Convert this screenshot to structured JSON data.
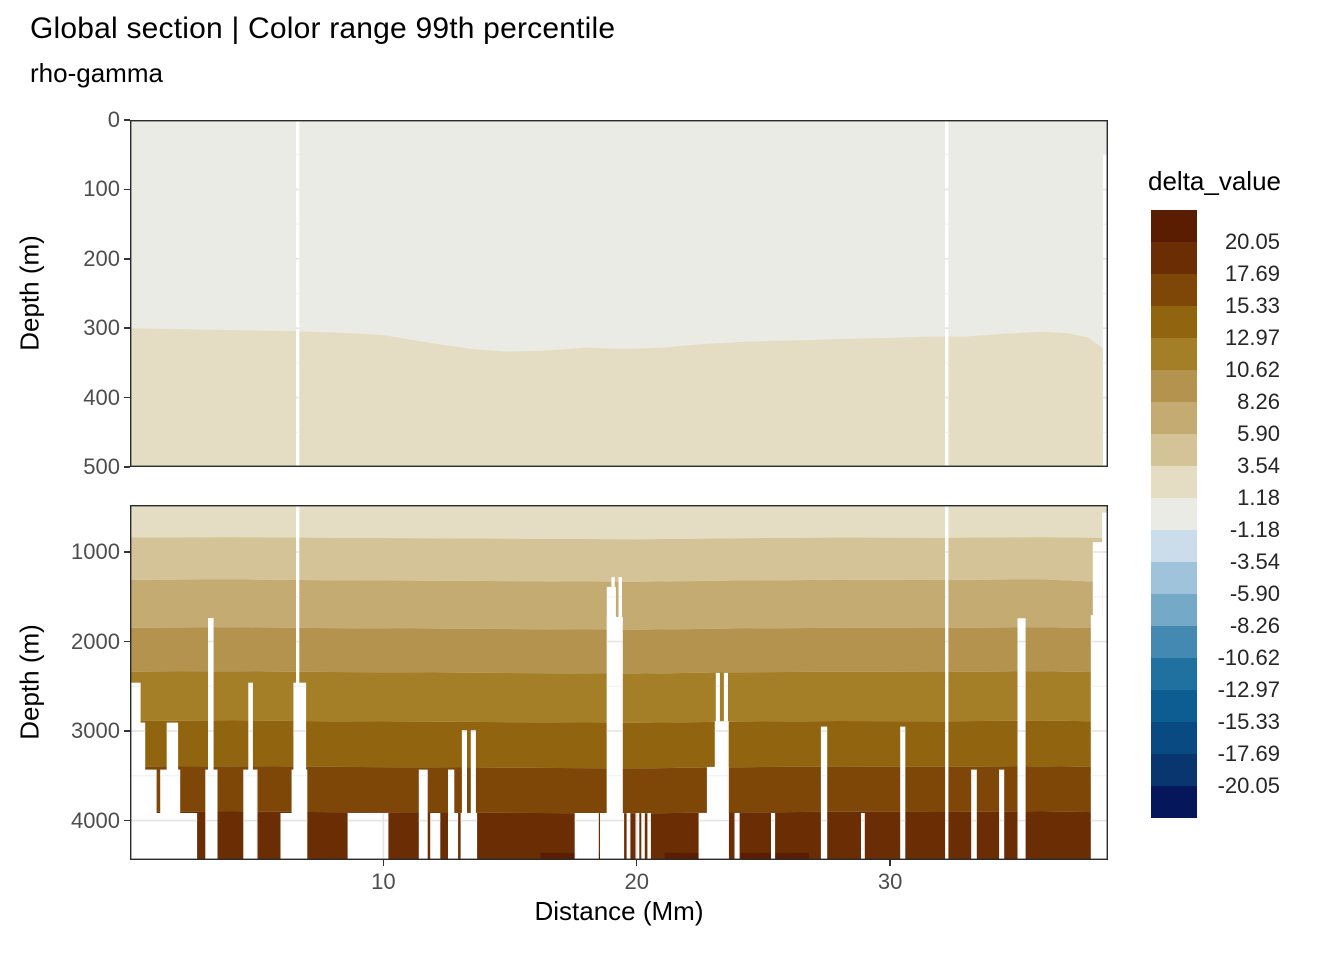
{
  "title": "Global section | Color range 99th percentile",
  "subtitle": "rho-gamma",
  "axes": {
    "x_label": "Distance (Mm)",
    "y_label": "Depth (m)",
    "x_ticks": [
      10,
      20,
      30
    ],
    "upper_y_ticks": [
      0,
      100,
      200,
      300,
      400,
      500
    ],
    "lower_y_ticks": [
      1000,
      2000,
      3000,
      4000
    ]
  },
  "legend": {
    "title": "delta_value",
    "bin_colors": [
      "#5A1D02",
      "#6B2D03",
      "#7E4708",
      "#91650F",
      "#A57F28",
      "#B3934D",
      "#C3AB72",
      "#D4C397",
      "#E5DDC3",
      "#E9EBE4",
      "#CBDDEA",
      "#9FC3DB",
      "#74A9C8",
      "#4489B1",
      "#20719F",
      "#0D5C92",
      "#0A4A82",
      "#09366E",
      "#05165A"
    ],
    "boundary_labels": [
      "20.05",
      "17.69",
      "15.33",
      "12.97",
      "10.62",
      "8.26",
      "5.90",
      "3.54",
      "1.18",
      "-1.18",
      "-3.54",
      "-5.90",
      "-8.26",
      "-10.62",
      "-12.97",
      "-15.33",
      "-17.69",
      "-20.05"
    ]
  },
  "chart_data": {
    "type": "heatmap",
    "title": "Global section | Color range 99th percentile",
    "subtitle": "rho-gamma",
    "xlabel": "Distance (Mm)",
    "ylabel": "Depth (m)",
    "legend_title": "delta_value",
    "x_range_mm": [
      0,
      38.6
    ],
    "grid": "on",
    "legend_position": "right",
    "panels": [
      {
        "name": "upper",
        "depth_range_m": [
          0,
          500
        ],
        "regions": [
          {
            "color": "#E9EBE4",
            "approx_value_bin": "-1.18 to 1.18"
          },
          {
            "color": "#E5DDC3",
            "approx_value_bin": "1.18 to 3.54"
          }
        ],
        "boundary_wave": {
          "x_mm": [
            0,
            3,
            6,
            8,
            10,
            12,
            13.5,
            15,
            16.5,
            18,
            19.5,
            21,
            22.5,
            24,
            25.5,
            27,
            28.5,
            30,
            31.5,
            33,
            34.5,
            36,
            37,
            37.8,
            38.3,
            38.6
          ],
          "depth_m": [
            300,
            302,
            304,
            306,
            310,
            322,
            330,
            334,
            332,
            328,
            330,
            328,
            323,
            320,
            318,
            317,
            315,
            314,
            312,
            312,
            308,
            305,
            307,
            313,
            326,
            336
          ]
        },
        "gaps": [
          [
            6.55,
            6.68,
            0
          ],
          [
            32.17,
            32.3,
            0
          ],
          [
            38.4,
            38.6,
            50
          ]
        ]
      },
      {
        "name": "lower",
        "depth_range_m": [
          475,
          4440
        ],
        "band_colors": [
          "#E5DDC3",
          "#D4C397",
          "#C3AB72",
          "#B3934D",
          "#A57F28",
          "#91650F",
          "#7E4708",
          "#6B2D03"
        ],
        "band_value_bins": [
          "1.18–3.54",
          "3.54–5.90",
          "5.90–8.26",
          "8.26–10.62",
          "10.62–12.97",
          "12.97–15.33",
          "15.33–17.69",
          "17.69–20.05"
        ],
        "wave_x_mm": [
          0,
          4,
          8,
          12,
          16,
          20,
          24,
          28,
          32,
          36,
          38.6
        ],
        "boundary_waves": [
          [
            838,
            834,
            840,
            846,
            852,
            858,
            846,
            838,
            841,
            834,
            842
          ],
          [
            1312,
            1306,
            1315,
            1320,
            1326,
            1332,
            1318,
            1310,
            1313,
            1306,
            1336
          ],
          [
            1848,
            1842,
            1850,
            1856,
            1862,
            1868,
            1854,
            1846,
            1849,
            1842,
            1852
          ],
          [
            2338,
            2332,
            2340,
            2346,
            2352,
            2358,
            2344,
            2337,
            2340,
            2333,
            2342
          ],
          [
            2888,
            2882,
            2890,
            2896,
            2902,
            2908,
            2894,
            2887,
            2890,
            2883,
            2892
          ],
          [
            3398,
            3393,
            3400,
            3406,
            3411,
            3417,
            3404,
            3397,
            3400,
            3394,
            3402
          ],
          [
            3903,
            3898,
            3905,
            3910,
            3915,
            3920,
            3908,
            3901,
            3904,
            3898,
            3906
          ]
        ],
        "deep_patches": [
          [
            16.2,
            18.55,
            4360
          ],
          [
            21.1,
            22.44,
            4360
          ],
          [
            24.1,
            26.8,
            4360
          ]
        ],
        "deep_patch_color": "#5A1D02",
        "gaps": [
          [
            0,
            0.42,
            2460
          ],
          [
            0,
            0.6,
            2905
          ],
          [
            1.45,
            1.9,
            2905
          ],
          [
            0,
            1.05,
            3430
          ],
          [
            1.19,
            1.98,
            3430
          ],
          [
            0,
            2.65,
            3915
          ],
          [
            3.08,
            3.3,
            1737
          ],
          [
            2.97,
            3.45,
            3430
          ],
          [
            4.67,
            4.85,
            2460
          ],
          [
            4.47,
            5.03,
            3430
          ],
          [
            6.55,
            6.68,
            475
          ],
          [
            6.45,
            6.95,
            2460
          ],
          [
            6.38,
            7.0,
            3430
          ],
          [
            5.94,
            6.5,
            3915
          ],
          [
            8.59,
            10.2,
            3915
          ],
          [
            11.4,
            11.75,
            3430
          ],
          [
            11.85,
            12.25,
            3915
          ],
          [
            12.55,
            12.8,
            3430
          ],
          [
            12.55,
            12.95,
            3915
          ],
          [
            13.1,
            13.3,
            2990
          ],
          [
            13.45,
            13.65,
            2990
          ],
          [
            13.05,
            13.7,
            3915
          ],
          [
            17.55,
            18.5,
            3915
          ],
          [
            19.0,
            19.13,
            1280,
            1390
          ],
          [
            18.82,
            19.18,
            1390
          ],
          [
            19.28,
            19.42,
            1280,
            1725
          ],
          [
            18.82,
            19.45,
            1725
          ],
          [
            18.55,
            19.5,
            3915
          ],
          [
            19.6,
            19.75,
            3915
          ],
          [
            19.95,
            20.1,
            3915
          ],
          [
            20.18,
            20.32,
            3915
          ],
          [
            20.42,
            20.56,
            3915
          ],
          [
            23.12,
            23.28,
            2350,
            2890
          ],
          [
            23.44,
            23.6,
            2350,
            2890
          ],
          [
            23.08,
            23.63,
            2890
          ],
          [
            22.77,
            23.63,
            3400
          ],
          [
            22.44,
            23.63,
            3915
          ],
          [
            23.86,
            24.06,
            3915
          ],
          [
            25.3,
            25.46,
            3915
          ],
          [
            27.27,
            27.52,
            2950
          ],
          [
            28.85,
            29.0,
            3915
          ],
          [
            30.4,
            30.6,
            2950
          ],
          [
            32.17,
            32.3,
            475
          ],
          [
            33.2,
            33.42,
            3430
          ],
          [
            34.3,
            34.5,
            3430
          ],
          [
            35.03,
            35.35,
            1740
          ],
          [
            38.0,
            38.37,
            890
          ],
          [
            37.92,
            38.6,
            1705
          ],
          [
            38.37,
            38.6,
            560
          ]
        ]
      }
    ]
  }
}
